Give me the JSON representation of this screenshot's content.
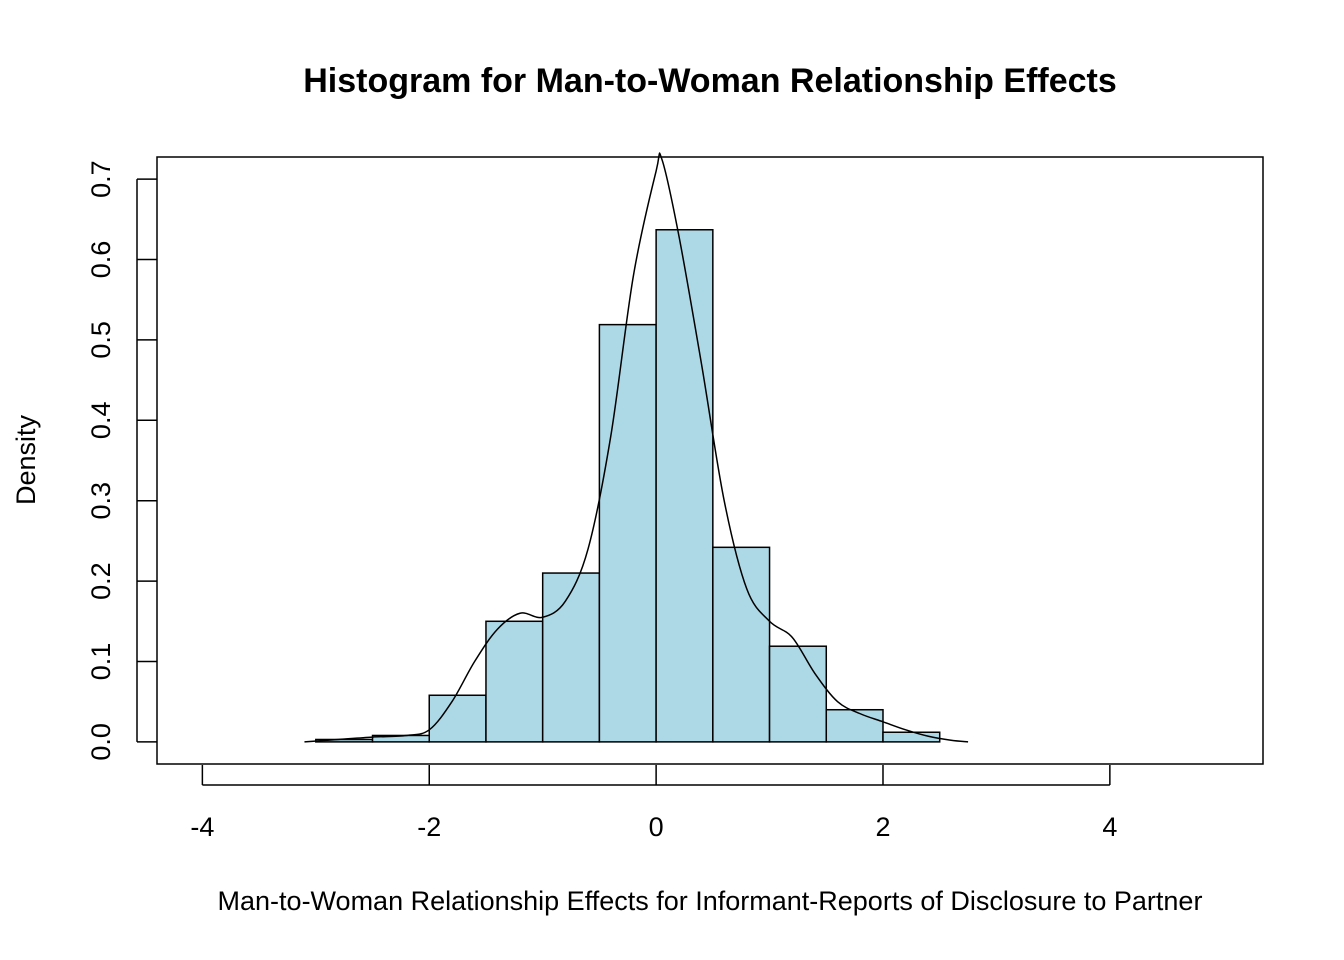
{
  "chart_data": {
    "type": "histogram",
    "title": "Histogram for Man-to-Woman Relationship Effects",
    "xlabel": "Man-to-Woman Relationship Effects for Informant-Reports of Disclosure to Partner",
    "ylabel": "Density",
    "xlim": [
      -4.4,
      5.35
    ],
    "ylim": [
      -0.0275,
      0.7275
    ],
    "x_ticks": [
      -4,
      -2,
      0,
      2,
      4
    ],
    "y_ticks": [
      0.0,
      0.1,
      0.2,
      0.3,
      0.4,
      0.5,
      0.6,
      0.7
    ],
    "x_tick_labels": [
      "-4",
      "-2",
      "0",
      "2",
      "4"
    ],
    "y_tick_labels": [
      "0.0",
      "0.1",
      "0.2",
      "0.3",
      "0.4",
      "0.5",
      "0.6",
      "0.7"
    ],
    "bar_color": "#add8e6",
    "bins": [
      {
        "from": -3.0,
        "to": -2.5,
        "density": 0.003
      },
      {
        "from": -2.5,
        "to": -2.0,
        "density": 0.008
      },
      {
        "from": -2.0,
        "to": -1.5,
        "density": 0.058
      },
      {
        "from": -1.5,
        "to": -1.0,
        "density": 0.15
      },
      {
        "from": -1.0,
        "to": -0.5,
        "density": 0.21
      },
      {
        "from": -0.5,
        "to": 0.0,
        "density": 0.519
      },
      {
        "from": 0.0,
        "to": 0.5,
        "density": 0.637
      },
      {
        "from": 0.5,
        "to": 1.0,
        "density": 0.242
      },
      {
        "from": 1.0,
        "to": 1.5,
        "density": 0.119
      },
      {
        "from": 1.5,
        "to": 2.0,
        "density": 0.04
      },
      {
        "from": 2.0,
        "to": 2.5,
        "density": 0.012
      }
    ],
    "density_curve": {
      "x": [
        -3.1,
        -2.8,
        -2.5,
        -2.2,
        -2.0,
        -1.8,
        -1.6,
        -1.4,
        -1.2,
        -1.0,
        -0.8,
        -0.6,
        -0.4,
        -0.2,
        0.0,
        0.05,
        0.2,
        0.4,
        0.6,
        0.8,
        1.0,
        1.2,
        1.4,
        1.6,
        1.8,
        2.0,
        2.2,
        2.4,
        2.6,
        2.75
      ],
      "y": [
        0.0,
        0.003,
        0.006,
        0.008,
        0.015,
        0.05,
        0.1,
        0.14,
        0.16,
        0.155,
        0.175,
        0.24,
        0.38,
        0.58,
        0.71,
        0.725,
        0.63,
        0.47,
        0.3,
        0.19,
        0.15,
        0.13,
        0.085,
        0.05,
        0.035,
        0.025,
        0.015,
        0.007,
        0.002,
        0.0
      ]
    }
  }
}
